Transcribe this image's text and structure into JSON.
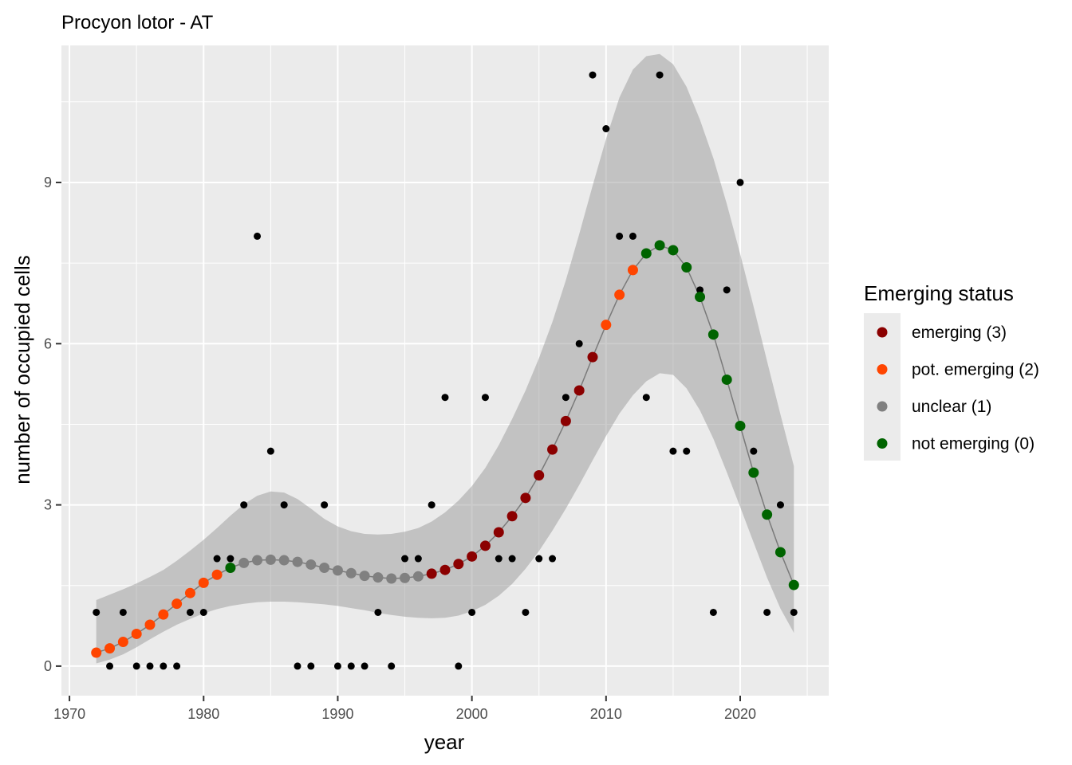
{
  "chart_data": {
    "type": "scatter",
    "title": "Procyon lotor - AT",
    "xlabel": "year",
    "ylabel": "number of occupied cells",
    "xlim": [
      1969.4,
      2026.6
    ],
    "ylim": [
      -0.55,
      11.55
    ],
    "x_ticks": [
      1970,
      1980,
      1990,
      2000,
      2010,
      2020
    ],
    "x_tick_labels": [
      "1970",
      "1980",
      "1990",
      "2000",
      "2010",
      "2020"
    ],
    "y_ticks": [
      0,
      3,
      6,
      9
    ],
    "y_tick_labels": [
      "0",
      "3",
      "6",
      "9"
    ],
    "grid": true,
    "panel_background": "#ebebeb",
    "legend": {
      "title": "Emerging status",
      "position": "right",
      "items": [
        {
          "label": "emerging (3)",
          "color": "#8b0000"
        },
        {
          "label": "pot. emerging (2)",
          "color": "#ff4500"
        },
        {
          "label": "unclear (1)",
          "color": "#808080"
        },
        {
          "label": "not emerging (0)",
          "color": "#006400"
        }
      ]
    },
    "observed": {
      "x": [
        1972,
        1973,
        1974,
        1975,
        1976,
        1977,
        1978,
        1979,
        1980,
        1981,
        1982,
        1983,
        1984,
        1985,
        1986,
        1987,
        1988,
        1989,
        1990,
        1991,
        1992,
        1993,
        1994,
        1995,
        1996,
        1997,
        1998,
        1999,
        2000,
        2001,
        2002,
        2003,
        2004,
        2005,
        2006,
        2007,
        2008,
        2009,
        2010,
        2011,
        2012,
        2013,
        2014,
        2015,
        2016,
        2017,
        2018,
        2019,
        2020,
        2021,
        2022,
        2023,
        2024
      ],
      "y": [
        1,
        0,
        1,
        0,
        0,
        0,
        0,
        1,
        1,
        2,
        2,
        3,
        8,
        4,
        3,
        0,
        0,
        3,
        0,
        0,
        0,
        1,
        0,
        2,
        2,
        3,
        5,
        0,
        1,
        5,
        2,
        2,
        1,
        2,
        2,
        5,
        6,
        11,
        10,
        8,
        8,
        5,
        11,
        4,
        4,
        7,
        1,
        7,
        9,
        4,
        1,
        3,
        1
      ]
    },
    "fitted": {
      "x": [
        1972,
        1973,
        1974,
        1975,
        1976,
        1977,
        1978,
        1979,
        1980,
        1981,
        1982,
        1983,
        1984,
        1985,
        1986,
        1987,
        1988,
        1989,
        1990,
        1991,
        1992,
        1993,
        1994,
        1995,
        1996,
        1997,
        1998,
        1999,
        2000,
        2001,
        2002,
        2003,
        2004,
        2005,
        2006,
        2007,
        2008,
        2009,
        2010,
        2011,
        2012,
        2013,
        2014,
        2015,
        2016,
        2017,
        2018,
        2019,
        2020,
        2021,
        2022,
        2023,
        2024
      ],
      "y": [
        0.25,
        0.33,
        0.45,
        0.6,
        0.77,
        0.96,
        1.16,
        1.36,
        1.55,
        1.7,
        1.83,
        1.92,
        1.97,
        1.98,
        1.97,
        1.94,
        1.89,
        1.83,
        1.78,
        1.73,
        1.68,
        1.65,
        1.63,
        1.64,
        1.67,
        1.72,
        1.79,
        1.9,
        2.04,
        2.24,
        2.49,
        2.79,
        3.13,
        3.55,
        4.03,
        4.56,
        5.13,
        5.75,
        6.35,
        6.91,
        7.37,
        7.68,
        7.83,
        7.74,
        7.42,
        6.87,
        6.17,
        5.33,
        4.47,
        3.6,
        2.82,
        2.12,
        1.51
      ],
      "status": [
        2,
        2,
        2,
        2,
        2,
        2,
        2,
        2,
        2,
        2,
        0,
        1,
        1,
        1,
        1,
        1,
        1,
        1,
        1,
        1,
        1,
        1,
        1,
        1,
        1,
        3,
        3,
        3,
        3,
        3,
        3,
        3,
        3,
        3,
        3,
        3,
        3,
        3,
        2,
        2,
        2,
        0,
        0,
        0,
        0,
        0,
        0,
        0,
        0,
        0,
        0,
        0,
        0
      ],
      "ci_lower": [
        0.05,
        0.12,
        0.22,
        0.35,
        0.5,
        0.64,
        0.77,
        0.88,
        0.98,
        1.06,
        1.12,
        1.16,
        1.19,
        1.2,
        1.2,
        1.19,
        1.17,
        1.15,
        1.12,
        1.08,
        1.04,
        0.99,
        0.95,
        0.92,
        0.9,
        0.89,
        0.9,
        0.94,
        1.02,
        1.14,
        1.31,
        1.53,
        1.81,
        2.14,
        2.52,
        2.93,
        3.37,
        3.83,
        4.28,
        4.7,
        5.04,
        5.3,
        5.45,
        5.42,
        5.17,
        4.76,
        4.23,
        3.61,
        2.96,
        2.3,
        1.65,
        1.07,
        0.62
      ],
      "ci_upper": [
        1.23,
        1.33,
        1.43,
        1.54,
        1.66,
        1.79,
        1.96,
        2.15,
        2.35,
        2.57,
        2.8,
        3.01,
        3.17,
        3.25,
        3.23,
        3.11,
        2.93,
        2.74,
        2.6,
        2.51,
        2.46,
        2.45,
        2.46,
        2.5,
        2.57,
        2.69,
        2.86,
        3.08,
        3.35,
        3.69,
        4.11,
        4.6,
        5.13,
        5.73,
        6.4,
        7.18,
        8.04,
        8.94,
        9.81,
        10.58,
        11.1,
        11.35,
        11.39,
        11.2,
        10.78,
        10.17,
        9.45,
        8.6,
        7.67,
        6.69,
        5.68,
        4.68,
        3.72
      ]
    }
  }
}
